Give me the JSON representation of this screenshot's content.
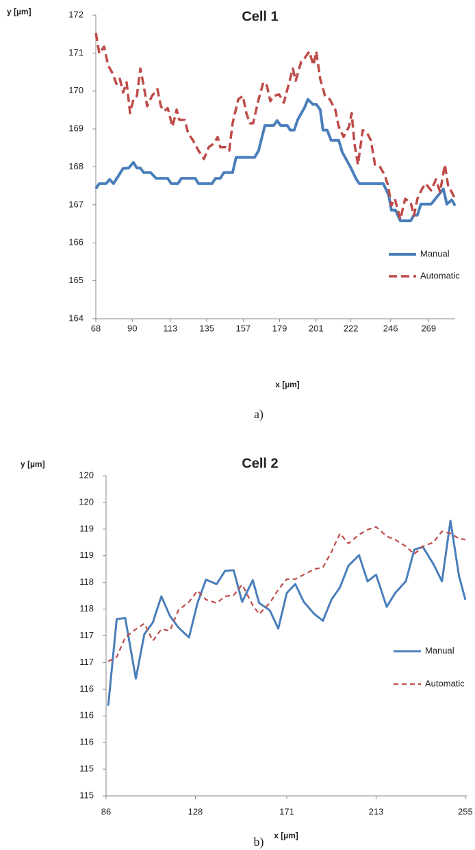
{
  "chart_data": [
    {
      "type": "line",
      "title": "Cell 1",
      "y_label": "y [µm]",
      "x_label": "x [µm]",
      "caption": "a)",
      "xlim": [
        68,
        285
      ],
      "xticks": [
        68,
        90,
        113,
        135,
        157,
        179,
        201,
        222,
        246,
        269
      ],
      "ylim": [
        164,
        172
      ],
      "yticks": [
        164,
        165,
        166,
        167,
        168,
        169,
        170,
        171,
        172
      ],
      "grid": false,
      "legend": "right",
      "series": [
        {
          "name": "Manual",
          "color": "#4a7ebb",
          "style": "solid",
          "x": [
            68,
            70.1,
            74.2,
            76.3,
            78.7,
            84.5,
            87.8,
            90.7,
            92.8,
            94.9,
            96.9,
            101.1,
            104.4,
            111.4,
            113.5,
            117.6,
            119.7,
            128,
            130,
            138.2,
            140.3,
            143.2,
            145.3,
            150.6,
            152.7,
            163.9,
            166.3,
            170.1,
            175.4,
            177.5,
            179.6,
            183.7,
            185.4,
            187.8,
            189.9,
            194,
            196.1,
            199,
            201.1,
            203.5,
            205.2,
            207.7,
            210.1,
            214.7,
            216.8,
            222.1,
            225,
            227.1,
            241.6,
            244.9,
            246.5,
            249,
            251.9,
            258.1,
            260.1,
            262.2,
            264.3,
            270.5,
            277.9,
            280,
            282.9,
            285
          ],
          "values": [
            167.43,
            167.56,
            167.56,
            167.67,
            167.56,
            167.96,
            167.97,
            168.12,
            167.97,
            167.97,
            167.85,
            167.85,
            167.7,
            167.7,
            167.56,
            167.56,
            167.7,
            167.7,
            167.56,
            167.56,
            167.7,
            167.7,
            167.85,
            167.85,
            168.25,
            168.25,
            168.43,
            169.09,
            169.09,
            169.22,
            169.09,
            169.09,
            168.97,
            168.97,
            169.24,
            169.56,
            169.78,
            169.65,
            169.65,
            169.51,
            168.97,
            168.97,
            168.7,
            168.7,
            168.39,
            167.97,
            167.7,
            167.56,
            167.56,
            167.25,
            166.86,
            166.86,
            166.58,
            166.58,
            166.73,
            166.73,
            167.02,
            167.02,
            167.42,
            167.02,
            167.13,
            166.98
          ]
        },
        {
          "name": "Automatic",
          "color": "#be4b48",
          "style": "dashed",
          "x": [
            68,
            70.1,
            73,
            75.4,
            78.3,
            80.4,
            82.5,
            84.5,
            86.6,
            88.7,
            90.7,
            92.8,
            94.9,
            96.9,
            99,
            101.9,
            105.2,
            107.3,
            109.3,
            111.4,
            114.3,
            116.8,
            118.4,
            121.7,
            123.8,
            126.7,
            130,
            133.3,
            136.2,
            139.1,
            141.6,
            143.2,
            146.5,
            148.6,
            150.6,
            154,
            156.8,
            158.9,
            161,
            163,
            166.3,
            169.2,
            171.3,
            173.4,
            175.4,
            178.7,
            181.6,
            183.7,
            187,
            188.7,
            192,
            194,
            196.9,
            199.4,
            201.1,
            203.5,
            206.4,
            209.3,
            212.6,
            214.7,
            217.6,
            220.9,
            222.5,
            224.2,
            226.3,
            229.2,
            232,
            234.1,
            236.6,
            239.5,
            242.4,
            244.4,
            246.5,
            248.6,
            251.9,
            254.8,
            258.1,
            260.1,
            262.2,
            265.1,
            267.2,
            270.5,
            273.4,
            275.9,
            278.8,
            280.8,
            282.9,
            285
          ],
          "values": [
            171.53,
            170.99,
            171.17,
            170.68,
            170.45,
            170.19,
            170.32,
            169.96,
            170.23,
            169.42,
            169.78,
            169.87,
            170.59,
            170.14,
            169.6,
            169.87,
            170.05,
            169.6,
            169.47,
            169.55,
            169.06,
            169.51,
            169.24,
            169.24,
            168.88,
            168.7,
            168.43,
            168.21,
            168.52,
            168.61,
            168.79,
            168.52,
            168.52,
            168.43,
            169.15,
            169.78,
            169.87,
            169.42,
            169.15,
            169.15,
            169.78,
            170.23,
            170.14,
            169.73,
            169.87,
            169.91,
            169.69,
            170.05,
            170.59,
            170.27,
            170.77,
            170.86,
            171.04,
            170.68,
            171.04,
            170.32,
            169.87,
            169.78,
            169.51,
            169.06,
            168.79,
            169.06,
            169.42,
            168.61,
            168.06,
            168.97,
            168.88,
            168.7,
            168.06,
            168.01,
            167.79,
            167.52,
            166.98,
            167.16,
            166.62,
            167.16,
            167.07,
            166.71,
            167.16,
            167.43,
            167.56,
            167.38,
            167.67,
            167.34,
            168.06,
            167.49,
            167.34,
            167.16
          ]
        }
      ]
    },
    {
      "type": "line",
      "title": "Cell 2",
      "y_label": "y [µm]",
      "x_label": "x [µm]",
      "caption": "b)",
      "xlim": [
        86,
        256
      ],
      "xticks": [
        86,
        128,
        171,
        213,
        255
      ],
      "ylim": [
        114.56,
        120.32
      ],
      "yticks": [
        {
          "value": 114.56,
          "label": "115"
        },
        {
          "value": 115.04,
          "label": "115"
        },
        {
          "value": 115.52,
          "label": "116"
        },
        {
          "value": 116.0,
          "label": "116"
        },
        {
          "value": 116.48,
          "label": "116"
        },
        {
          "value": 116.96,
          "label": "117"
        },
        {
          "value": 117.44,
          "label": "117"
        },
        {
          "value": 117.92,
          "label": "118"
        },
        {
          "value": 118.4,
          "label": "118"
        },
        {
          "value": 118.88,
          "label": "119"
        },
        {
          "value": 119.36,
          "label": "119"
        },
        {
          "value": 119.84,
          "label": "120"
        },
        {
          "value": 120.32,
          "label": "120"
        }
      ],
      "grid": false,
      "legend": "right",
      "series": [
        {
          "name": "Manual",
          "color": "#4a7ebb",
          "style": "solid",
          "x": [
            87,
            91,
            95,
            100,
            104,
            108,
            112,
            116,
            120,
            125,
            129,
            133,
            138,
            142,
            146,
            150,
            155,
            158,
            163,
            167,
            171,
            175,
            179,
            184,
            188,
            192,
            196,
            200,
            205,
            209,
            213,
            218,
            222,
            227,
            231,
            235,
            240,
            244,
            248,
            252,
            255
          ],
          "values": [
            116.18,
            117.74,
            117.76,
            116.67,
            117.47,
            117.68,
            118.15,
            117.8,
            117.59,
            117.41,
            118.03,
            118.45,
            118.37,
            118.61,
            118.62,
            118.05,
            118.44,
            118.03,
            117.9,
            117.57,
            118.21,
            118.37,
            118.05,
            117.83,
            117.71,
            118.09,
            118.31,
            118.7,
            118.89,
            118.42,
            118.54,
            117.96,
            118.21,
            118.42,
            118.99,
            119.04,
            118.73,
            118.42,
            119.51,
            118.52,
            118.09
          ]
        },
        {
          "name": "Automatic",
          "color": "#be4b48",
          "style": "dashed",
          "x": [
            87,
            91,
            95,
            100,
            104,
            108,
            112,
            116,
            120,
            125,
            129,
            133,
            138,
            142,
            146,
            150,
            155,
            158,
            163,
            167,
            171,
            175,
            179,
            184,
            188,
            192,
            196,
            200,
            205,
            209,
            213,
            218,
            222,
            227,
            231,
            235,
            240,
            244,
            248,
            252,
            255
          ],
          "values": [
            116.98,
            117.06,
            117.41,
            117.56,
            117.66,
            117.35,
            117.56,
            117.53,
            117.9,
            118.05,
            118.25,
            118.09,
            118.03,
            118.15,
            118.17,
            118.36,
            117.99,
            117.83,
            118.03,
            118.27,
            118.46,
            118.46,
            118.54,
            118.64,
            118.67,
            118.95,
            119.28,
            119.1,
            119.26,
            119.35,
            119.4,
            119.23,
            119.17,
            119.05,
            118.91,
            119.05,
            119.12,
            119.32,
            119.28,
            119.19,
            119.17
          ]
        }
      ]
    }
  ]
}
